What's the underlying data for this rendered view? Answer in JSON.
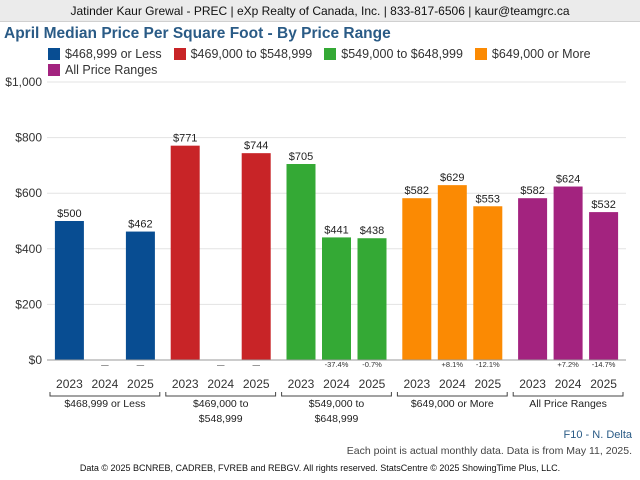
{
  "header": {
    "contact": "Jatinder Kaur Grewal - PREC | eXp Realty of Canada, Inc. | 833-817-6506 | kaur@teamgrc.ca"
  },
  "chart_data": {
    "type": "bar",
    "title": "April Median Price Per Square Foot - By Price Range",
    "yticks": [
      "$0",
      "$200",
      "$400",
      "$600",
      "$800",
      "$1,000"
    ],
    "ylim": [
      0,
      1000
    ],
    "grid": true,
    "legend_position": "top",
    "groups": [
      {
        "name": "$468,999 or Less",
        "label_lines": [
          "$468,999 or Less"
        ],
        "color": "#084d92",
        "years": [
          "2023",
          "2024",
          "2025"
        ],
        "values": [
          500,
          null,
          462
        ],
        "labels": [
          "$500",
          "—",
          "$462"
        ],
        "changes": [
          "",
          "—",
          "—"
        ]
      },
      {
        "name": "$469,000 to $548,999",
        "label_lines": [
          "$469,000 to",
          "$548,999"
        ],
        "color": "#c82427",
        "years": [
          "2023",
          "2024",
          "2025"
        ],
        "values": [
          771,
          null,
          744
        ],
        "labels": [
          "$771",
          "—",
          "$744"
        ],
        "changes": [
          "",
          "—",
          "—"
        ]
      },
      {
        "name": "$549,000 to $648,999",
        "label_lines": [
          "$549,000 to",
          "$648,999"
        ],
        "color": "#34a935",
        "years": [
          "2023",
          "2024",
          "2025"
        ],
        "values": [
          705,
          441,
          438
        ],
        "labels": [
          "$705",
          "$441",
          "$438"
        ],
        "changes": [
          "",
          "-37.4%",
          "-0.7%"
        ]
      },
      {
        "name": "$649,000 or More",
        "label_lines": [
          "$649,000 or More"
        ],
        "color": "#fb8a03",
        "years": [
          "2023",
          "2024",
          "2025"
        ],
        "values": [
          582,
          629,
          553
        ],
        "labels": [
          "$582",
          "$629",
          "$553"
        ],
        "changes": [
          "",
          "+8.1%",
          "-12.1%"
        ]
      },
      {
        "name": "All Price Ranges",
        "label_lines": [
          "All Price Ranges"
        ],
        "color": "#a3237f",
        "years": [
          "2023",
          "2024",
          "2025"
        ],
        "values": [
          582,
          624,
          532
        ],
        "labels": [
          "$582",
          "$624",
          "$532"
        ],
        "changes": [
          "",
          "+7.2%",
          "-14.7%"
        ]
      }
    ]
  },
  "footer": {
    "region": "F10 - N. Delta",
    "note": "Each point is actual monthly data. Data is from May 11, 2025.",
    "copyright": "Data © 2025 BCNREB, CADREB, FVREB and REBGV. All rights reserved. StatsCentre © 2025 ShowingTime Plus, LLC."
  }
}
